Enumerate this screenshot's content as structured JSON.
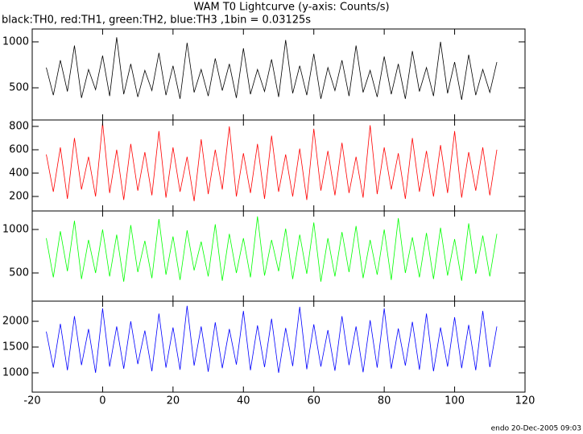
{
  "chart_data": [
    {
      "type": "line",
      "title": "WAM T0 Lightcurve (y-axis: Counts/s)",
      "subtitle": "black:TH0, red:TH1, green:TH2, blue:TH3 ,1bin = 0.03125s",
      "x": [
        -16,
        -14,
        -12,
        -10,
        -8,
        -6,
        -4,
        -2,
        0,
        2,
        4,
        6,
        8,
        10,
        12,
        14,
        16,
        18,
        20,
        22,
        24,
        26,
        28,
        30,
        32,
        34,
        36,
        38,
        40,
        42,
        44,
        46,
        48,
        50,
        52,
        54,
        56,
        58,
        60,
        62,
        64,
        66,
        68,
        70,
        72,
        74,
        76,
        78,
        80,
        82,
        84,
        86,
        88,
        90,
        92,
        94,
        96,
        98,
        100,
        102,
        104,
        106,
        108,
        110,
        112
      ],
      "color": "#000000",
      "values": [
        720,
        420,
        800,
        460,
        960,
        390,
        700,
        480,
        850,
        410,
        1050,
        430,
        760,
        400,
        690,
        470,
        880,
        420,
        740,
        380,
        990,
        450,
        700,
        410,
        820,
        470,
        760,
        390,
        930,
        430,
        700,
        460,
        810,
        400,
        1020,
        440,
        740,
        420,
        870,
        380,
        720,
        470,
        800,
        410,
        960,
        450,
        690,
        400,
        840,
        430,
        760,
        380,
        900,
        460,
        720,
        410,
        1000,
        440,
        780,
        370,
        860,
        420,
        700,
        450,
        780
      ],
      "xlim": [
        -20,
        120
      ],
      "ylim": [
        150,
        1140
      ],
      "yticks": [
        500,
        1000
      ]
    },
    {
      "type": "line",
      "x": [
        -16,
        -14,
        -12,
        -10,
        -8,
        -6,
        -4,
        -2,
        0,
        2,
        4,
        6,
        8,
        10,
        12,
        14,
        16,
        18,
        20,
        22,
        24,
        26,
        28,
        30,
        32,
        34,
        36,
        38,
        40,
        42,
        44,
        46,
        48,
        50,
        52,
        54,
        56,
        58,
        60,
        62,
        64,
        66,
        68,
        70,
        72,
        74,
        76,
        78,
        80,
        82,
        84,
        86,
        88,
        90,
        92,
        94,
        96,
        98,
        100,
        102,
        104,
        106,
        108,
        110,
        112
      ],
      "color": "#ff0000",
      "values": [
        560,
        240,
        620,
        180,
        700,
        260,
        540,
        200,
        830,
        230,
        600,
        170,
        650,
        250,
        580,
        210,
        760,
        190,
        620,
        240,
        540,
        160,
        690,
        220,
        600,
        260,
        800,
        200,
        570,
        230,
        650,
        180,
        720,
        240,
        560,
        200,
        610,
        170,
        780,
        250,
        590,
        210,
        660,
        230,
        540,
        190,
        810,
        220,
        620,
        260,
        570,
        180,
        700,
        240,
        590,
        200,
        640,
        230,
        760,
        190,
        580,
        250,
        620,
        210,
        600
      ],
      "xlim": [
        -20,
        120
      ],
      "ylim": [
        76,
        855
      ],
      "yticks": [
        200,
        400,
        600,
        800
      ]
    },
    {
      "type": "line",
      "x": [
        -16,
        -14,
        -12,
        -10,
        -8,
        -6,
        -4,
        -2,
        0,
        2,
        4,
        6,
        8,
        10,
        12,
        14,
        16,
        18,
        20,
        22,
        24,
        26,
        28,
        30,
        32,
        34,
        36,
        38,
        40,
        42,
        44,
        46,
        48,
        50,
        52,
        54,
        56,
        58,
        60,
        62,
        64,
        66,
        68,
        70,
        72,
        74,
        76,
        78,
        80,
        82,
        84,
        86,
        88,
        90,
        92,
        94,
        96,
        98,
        100,
        102,
        104,
        106,
        108,
        110,
        112
      ],
      "color": "#00ff00",
      "values": [
        900,
        450,
        980,
        520,
        1100,
        430,
        880,
        500,
        1000,
        460,
        940,
        400,
        1050,
        510,
        870,
        440,
        1120,
        480,
        920,
        420,
        990,
        530,
        860,
        460,
        1060,
        410,
        950,
        500,
        900,
        450,
        1150,
        470,
        880,
        520,
        1010,
        430,
        940,
        490,
        1080,
        400,
        900,
        460,
        970,
        510,
        1040,
        440,
        880,
        480,
        1000,
        420,
        1130,
        500,
        910,
        450,
        960,
        430,
        1020,
        470,
        890,
        410,
        1070,
        490,
        930,
        460,
        950
      ],
      "xlim": [
        -20,
        120
      ],
      "ylim": [
        176,
        1213
      ],
      "yticks": [
        500,
        1000
      ]
    },
    {
      "type": "line",
      "x": [
        -16,
        -14,
        -12,
        -10,
        -8,
        -6,
        -4,
        -2,
        0,
        2,
        4,
        6,
        8,
        10,
        12,
        14,
        16,
        18,
        20,
        22,
        24,
        26,
        28,
        30,
        32,
        34,
        36,
        38,
        40,
        42,
        44,
        46,
        48,
        50,
        52,
        54,
        56,
        58,
        60,
        62,
        64,
        66,
        68,
        70,
        72,
        74,
        76,
        78,
        80,
        82,
        84,
        86,
        88,
        90,
        92,
        94,
        96,
        98,
        100,
        102,
        104,
        106,
        108,
        110,
        112
      ],
      "color": "#0000ff",
      "values": [
        1800,
        1100,
        1950,
        1050,
        2100,
        1150,
        1850,
        1000,
        2250,
        1120,
        1900,
        1080,
        2000,
        1170,
        1820,
        1030,
        2150,
        1100,
        1880,
        1060,
        2300,
        1140,
        1900,
        1020,
        1980,
        1090,
        1850,
        1160,
        2200,
        1050,
        1920,
        1110,
        2050,
        1000,
        1870,
        1130,
        2280,
        1070,
        1940,
        1120,
        1830,
        1040,
        2100,
        1150,
        1900,
        1010,
        2020,
        1100,
        2250,
        1080,
        1860,
        1140,
        1990,
        1060,
        2150,
        1030,
        1880,
        1120,
        2080,
        1090,
        1930,
        1050,
        2200,
        1110,
        1900
      ],
      "xlim": [
        -20,
        120
      ],
      "ylim": [
        625,
        2391
      ],
      "yticks": [
        1000,
        1500,
        2000
      ],
      "xticks": [
        -20,
        0,
        20,
        40,
        60,
        80,
        100,
        120
      ]
    }
  ],
  "footer": "endo 20-Dec-2005 09:03"
}
